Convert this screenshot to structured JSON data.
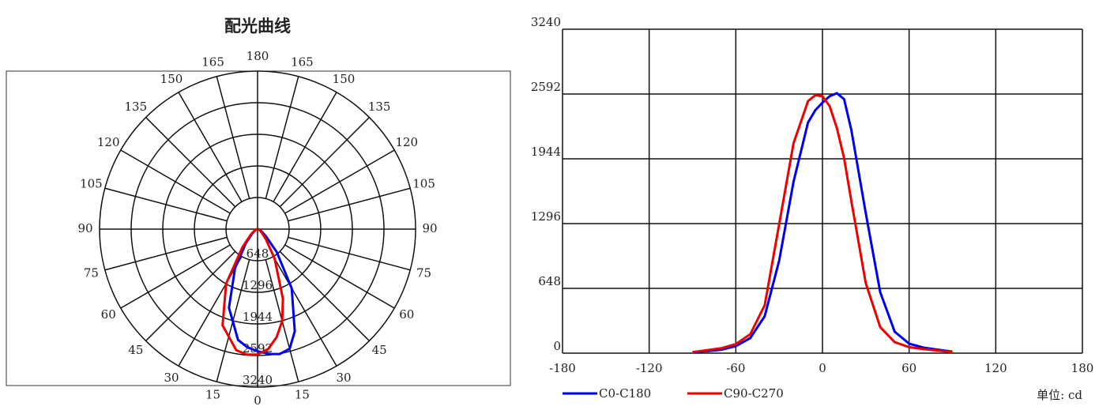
{
  "chart_data": [
    {
      "type": "polar",
      "title": "配光曲线",
      "angle_ticks": [
        0,
        15,
        30,
        45,
        60,
        75,
        90,
        105,
        120,
        135,
        150,
        165,
        180
      ],
      "rlim": [
        0,
        3240
      ],
      "rticks": [
        648,
        1296,
        1944,
        2592,
        3240
      ],
      "x": [
        -90,
        -80,
        -70,
        -60,
        -50,
        -40,
        -30,
        -20,
        -10,
        -5,
        0,
        5,
        10,
        15,
        20,
        30,
        40,
        50,
        60,
        70,
        80,
        90
      ],
      "series": [
        {
          "name": "C0-C180",
          "color": "#0000ee",
          "values": [
            10,
            20,
            35,
            70,
            150,
            370,
            925,
            1715,
            2307,
            2430,
            2505,
            2570,
            2600,
            2540,
            2230,
            1400,
            610,
            215,
            95,
            55,
            35,
            15
          ]
        },
        {
          "name": "C90-C270",
          "color": "#ee0000",
          "values": [
            10,
            30,
            50,
            90,
            190,
            480,
            1290,
            2100,
            2520,
            2580,
            2570,
            2470,
            2250,
            1950,
            1520,
            700,
            260,
            110,
            60,
            40,
            25,
            10
          ]
        }
      ]
    },
    {
      "type": "line",
      "x": [
        -90,
        -80,
        -70,
        -60,
        -50,
        -40,
        -30,
        -20,
        -10,
        -5,
        0,
        5,
        10,
        15,
        20,
        30,
        40,
        50,
        60,
        70,
        80,
        90
      ],
      "xlim": [
        -180,
        180
      ],
      "xticks": [
        -180,
        -120,
        -60,
        0,
        60,
        120,
        180
      ],
      "ylim": [
        0,
        3240
      ],
      "yticks": [
        0,
        648,
        1296,
        1944,
        2592,
        3240
      ],
      "grid": true,
      "series": [
        {
          "name": "C0-C180",
          "color": "#0000ee",
          "values": [
            10,
            20,
            35,
            70,
            150,
            370,
            925,
            1715,
            2307,
            2430,
            2505,
            2570,
            2600,
            2540,
            2230,
            1400,
            610,
            215,
            95,
            55,
            35,
            15
          ]
        },
        {
          "name": "C90-C270",
          "color": "#ee0000",
          "values": [
            10,
            30,
            50,
            90,
            190,
            480,
            1290,
            2100,
            2520,
            2580,
            2570,
            2470,
            2250,
            1950,
            1520,
            700,
            260,
            110,
            60,
            40,
            25,
            10
          ]
        }
      ],
      "annotation": "单位: cd"
    }
  ]
}
